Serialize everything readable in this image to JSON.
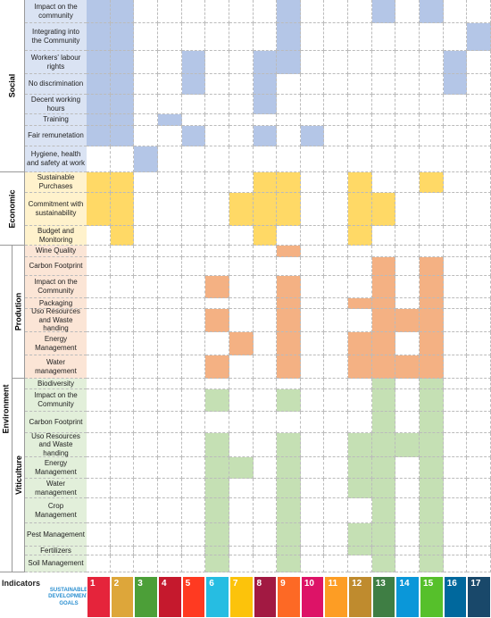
{
  "sections": [
    {
      "label": "Social",
      "color": "#b4c6e7",
      "label_bg": "#dae3f3",
      "rows": [
        {
          "label": "Impact on the community",
          "marks": [
            1,
            1,
            0,
            0,
            0,
            0,
            0,
            0,
            1,
            0,
            0,
            0,
            1,
            0,
            1,
            0,
            0
          ]
        },
        {
          "label": "Integrating into the Community",
          "marks": [
            1,
            1,
            0,
            0,
            0,
            0,
            0,
            0,
            1,
            0,
            0,
            0,
            0,
            0,
            0,
            0,
            1
          ]
        },
        {
          "label": "Workers' labour rights",
          "marks": [
            1,
            1,
            0,
            0,
            1,
            0,
            0,
            1,
            1,
            0,
            0,
            0,
            0,
            0,
            0,
            1,
            0
          ]
        },
        {
          "label": "No discrimination",
          "marks": [
            1,
            1,
            0,
            0,
            1,
            0,
            0,
            1,
            0,
            0,
            0,
            0,
            0,
            0,
            0,
            1,
            0
          ]
        },
        {
          "label": "Decent working hours",
          "marks": [
            1,
            1,
            0,
            0,
            0,
            0,
            0,
            1,
            0,
            0,
            0,
            0,
            0,
            0,
            0,
            0,
            0
          ]
        },
        {
          "label": "Training",
          "marks": [
            1,
            1,
            0,
            1,
            0,
            0,
            0,
            0,
            0,
            0,
            0,
            0,
            0,
            0,
            0,
            0,
            0
          ]
        },
        {
          "label": "Fair remunetation",
          "marks": [
            1,
            1,
            0,
            0,
            1,
            0,
            0,
            1,
            0,
            1,
            0,
            0,
            0,
            0,
            0,
            0,
            0
          ]
        },
        {
          "label": "Hygiene, health and safety at work",
          "marks": [
            0,
            0,
            1,
            0,
            0,
            0,
            0,
            0,
            0,
            0,
            0,
            0,
            0,
            0,
            0,
            0,
            0
          ]
        }
      ]
    },
    {
      "label": "Economic",
      "color": "#ffd966",
      "label_bg": "#fff2cc",
      "rows": [
        {
          "label": "Sustainable Purchases",
          "marks": [
            1,
            1,
            0,
            0,
            0,
            0,
            0,
            1,
            1,
            0,
            0,
            1,
            0,
            0,
            1,
            0,
            0
          ]
        },
        {
          "label": "Commitment with sustainability",
          "marks": [
            1,
            1,
            0,
            0,
            0,
            0,
            1,
            1,
            1,
            0,
            0,
            1,
            1,
            0,
            0,
            0,
            0
          ]
        },
        {
          "label": "Budget and Monitoring",
          "marks": [
            0,
            1,
            0,
            0,
            0,
            0,
            0,
            1,
            0,
            0,
            0,
            1,
            0,
            0,
            0,
            0,
            0
          ]
        }
      ]
    },
    {
      "label": "Environment",
      "subsections": [
        {
          "label": "Prodution",
          "color": "#f4b183",
          "label_bg": "#fbe5d6",
          "rows": [
            {
              "label": "Wine Quality",
              "marks": [
                0,
                0,
                0,
                0,
                0,
                0,
                0,
                0,
                1,
                0,
                0,
                0,
                0,
                0,
                0,
                0,
                0
              ]
            },
            {
              "label": "Carbon Footprint",
              "marks": [
                0,
                0,
                0,
                0,
                0,
                0,
                0,
                0,
                0,
                0,
                0,
                0,
                1,
                0,
                1,
                0,
                0
              ]
            },
            {
              "label": "Impact on the Community",
              "marks": [
                0,
                0,
                0,
                0,
                0,
                1,
                0,
                0,
                1,
                0,
                0,
                0,
                1,
                0,
                1,
                0,
                0
              ]
            },
            {
              "label": "Packaging",
              "marks": [
                0,
                0,
                0,
                0,
                0,
                0,
                0,
                0,
                1,
                0,
                0,
                1,
                1,
                0,
                1,
                0,
                0
              ]
            },
            {
              "label": "Uso Resources and Waste handing",
              "marks": [
                0,
                0,
                0,
                0,
                0,
                1,
                0,
                0,
                1,
                0,
                0,
                0,
                1,
                1,
                1,
                0,
                0
              ]
            },
            {
              "label": "Energy Management",
              "marks": [
                0,
                0,
                0,
                0,
                0,
                0,
                1,
                0,
                1,
                0,
                0,
                1,
                1,
                0,
                1,
                0,
                0
              ]
            },
            {
              "label": "Water management",
              "marks": [
                0,
                0,
                0,
                0,
                0,
                1,
                0,
                0,
                1,
                0,
                0,
                1,
                1,
                1,
                1,
                0,
                0
              ]
            }
          ]
        },
        {
          "label": "Viticulture",
          "color": "#c5e0b4",
          "label_bg": "#e2efda",
          "rows": [
            {
              "label": "Biodiversity",
              "marks": [
                0,
                0,
                0,
                0,
                0,
                0,
                0,
                0,
                0,
                0,
                0,
                0,
                1,
                0,
                1,
                0,
                0
              ]
            },
            {
              "label": "Impact on the Community",
              "marks": [
                0,
                0,
                0,
                0,
                0,
                1,
                0,
                0,
                1,
                0,
                0,
                0,
                1,
                0,
                1,
                0,
                0
              ]
            },
            {
              "label": "Carbon Footprint",
              "marks": [
                0,
                0,
                0,
                0,
                0,
                0,
                0,
                0,
                0,
                0,
                0,
                0,
                1,
                0,
                1,
                0,
                0
              ]
            },
            {
              "label": "Uso Resources and Waste handing",
              "marks": [
                0,
                0,
                0,
                0,
                0,
                1,
                0,
                0,
                1,
                0,
                0,
                1,
                1,
                1,
                1,
                0,
                0
              ]
            },
            {
              "label": "Energy Management",
              "marks": [
                0,
                0,
                0,
                0,
                0,
                1,
                1,
                0,
                1,
                0,
                0,
                1,
                1,
                0,
                1,
                0,
                0
              ]
            },
            {
              "label": "Water management",
              "marks": [
                0,
                0,
                0,
                0,
                0,
                1,
                0,
                0,
                1,
                0,
                0,
                1,
                1,
                0,
                1,
                0,
                0
              ]
            },
            {
              "label": "Crop Management",
              "marks": [
                0,
                0,
                0,
                0,
                0,
                1,
                0,
                0,
                1,
                0,
                0,
                0,
                1,
                0,
                1,
                0,
                0
              ]
            },
            {
              "label": "Pest Management",
              "marks": [
                0,
                0,
                0,
                0,
                0,
                1,
                0,
                0,
                1,
                0,
                0,
                1,
                1,
                0,
                1,
                0,
                0
              ]
            },
            {
              "label": "Fertilizers",
              "marks": [
                0,
                0,
                0,
                0,
                0,
                1,
                0,
                0,
                1,
                0,
                0,
                1,
                1,
                0,
                1,
                0,
                0
              ]
            },
            {
              "label": "Soil Management",
              "marks": [
                0,
                0,
                0,
                0,
                0,
                1,
                0,
                0,
                1,
                0,
                0,
                0,
                1,
                0,
                1,
                0,
                0
              ]
            }
          ]
        }
      ]
    }
  ],
  "indicators": {
    "label": "Indicators",
    "logo": "SUSTAINABLE DEVELOPMENT GOALS",
    "goals": [
      "1",
      "2",
      "3",
      "4",
      "5",
      "6",
      "7",
      "8",
      "9",
      "10",
      "11",
      "12",
      "13",
      "14",
      "15",
      "16",
      "17"
    ],
    "colors": [
      "#e5243b",
      "#dda63a",
      "#4c9f38",
      "#c5192d",
      "#ff3a21",
      "#26bde2",
      "#fcc30b",
      "#a21942",
      "#fd6925",
      "#dd1367",
      "#fd9d24",
      "#bf8b2e",
      "#3f7e44",
      "#0a97d9",
      "#56c02b",
      "#00689d",
      "#19486a"
    ]
  }
}
